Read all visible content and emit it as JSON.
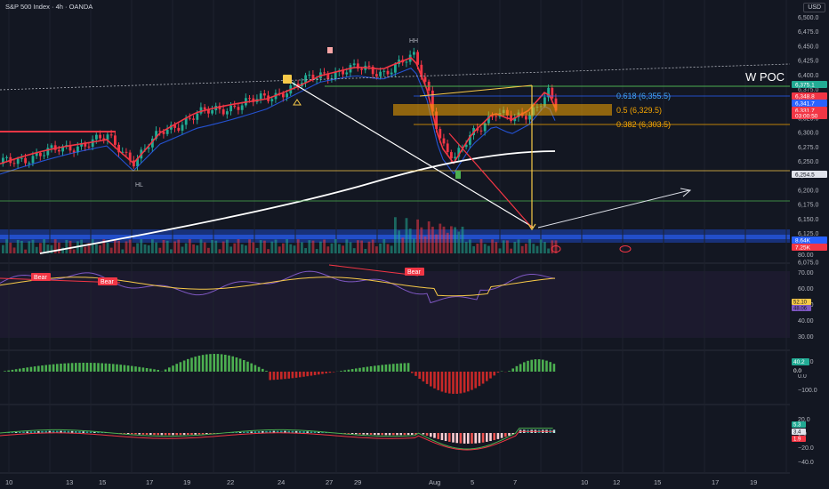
{
  "header": {
    "title": "S&P 500 Index · 4h · OANDA",
    "currency": "USD"
  },
  "price_axis": {
    "ticks": [
      "6,500.0",
      "6,475.0",
      "6,450.0",
      "6,425.0",
      "6,400.0",
      "6,375.0",
      "6,350.0",
      "6,325.0",
      "6,300.0",
      "6,275.0",
      "6,250.0",
      "6,225.0",
      "6,200.0",
      "6,175.0",
      "6,150.0",
      "6,125.0",
      "6,100.0",
      "6,075.0"
    ],
    "badges": [
      {
        "text": "6,375.1",
        "color": "#22ab94"
      },
      {
        "text": "6,348.8",
        "color": "#f23645"
      },
      {
        "text": "6,341.7",
        "color": "#2962ff"
      },
      {
        "text": "6,331.7",
        "color": "#f23645"
      },
      {
        "text": "03:00:50",
        "color": "#f23645"
      },
      {
        "text": "6,254.5",
        "color": "#e0e3eb"
      },
      {
        "text": "8.64K",
        "color": "#2962ff"
      },
      {
        "text": "7.25K",
        "color": "#f23645"
      }
    ],
    "volume_tick": "80.00"
  },
  "annotations": {
    "w_poc": "W POC",
    "hh": "HH",
    "hl": "HL",
    "fib_618": "0.618 (6,355.5)",
    "fib_05": "0.5 (6,329.5)",
    "fib_382": "0.382 (6,303.5)"
  },
  "rsi": {
    "ticks": [
      "70.00",
      "60.00",
      "50.00",
      "40.00",
      "30.00"
    ],
    "badges": [
      {
        "text": "52.10",
        "color": "#f7c948"
      },
      {
        "text": "48.06",
        "color": "#7e57c2"
      }
    ],
    "labels": [
      "Bear",
      "Bear",
      "Bear"
    ]
  },
  "histogram": {
    "ticks": [
      "100.0",
      "0.0",
      "−100.0"
    ],
    "badges": [
      {
        "text": "40.2",
        "color": "#22ab94"
      },
      {
        "text": "0.0",
        "color": "#131722"
      }
    ]
  },
  "macd": {
    "ticks": [
      "20.0",
      "0.0",
      "−20.0",
      "−40.0"
    ],
    "badges": [
      {
        "text": "5.3",
        "color": "#22ab94"
      },
      {
        "text": "3.4",
        "color": "#e0e3eb"
      },
      {
        "text": "1.9",
        "color": "#f23645"
      }
    ]
  },
  "time_axis": [
    "10",
    "13",
    "15",
    "17",
    "19",
    "22",
    "24",
    "27",
    "29",
    "Aug",
    "5",
    "7",
    "10",
    "12",
    "15",
    "17",
    "19"
  ],
  "colors": {
    "bg": "#131722",
    "up": "#22ab94",
    "down": "#f23645",
    "grid": "#1e222d"
  }
}
